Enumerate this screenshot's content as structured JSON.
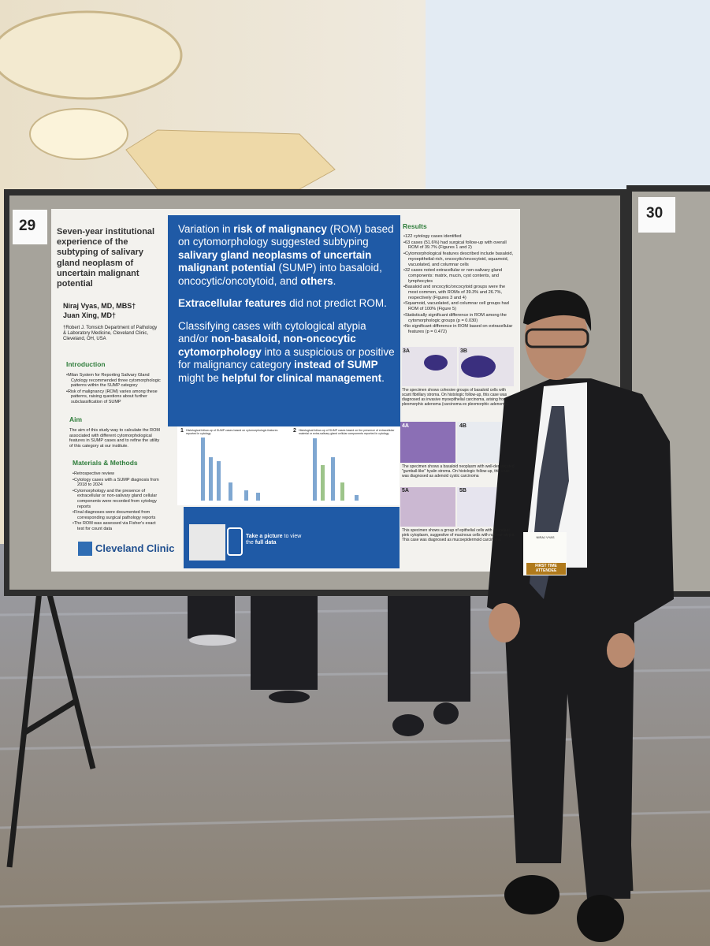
{
  "board_numbers": [
    "29",
    "30"
  ],
  "poster": {
    "title": "Seven-year institutional experience of the subtyping of salivary gland neoplasm of uncertain malignant potential",
    "authors": [
      "Niraj Vyas, MD, MBS†",
      "Juan Xing, MD†"
    ],
    "affiliation": "†Robert J. Tomsich Department of Pathology & Laboratory Medicine, Cleveland Clinic, Cleveland, OH, USA",
    "introduction": {
      "heading": "Introduction",
      "bullets": [
        "Milan System for Reporting Salivary Gland Cytology recommended three cytomorphologic patterns within the SUMP category",
        "Risk of malignancy (ROM) varies among these patterns, raising questions about further subclassification of SUMP"
      ]
    },
    "aim": {
      "heading": "Aim",
      "text": "The aim of this study way to calculate the ROM associated with different cytomorphological features in SUMP cases and to refine the utility of this category at our institute."
    },
    "methods": {
      "heading": "Materials & Methods",
      "bullets": [
        "Retrospective review",
        "Cytology cases with a SUMP diagnosis from 2018 to 2024",
        "Cytomorphology and the presence of extracellular or non-salivary gland cellular components were recorded from cytology reports",
        "Final diagnoses were documented from corresponding surgical pathology reports",
        "The ROM was assessed via Fisher's exact test for count data"
      ]
    },
    "key_message": [
      [
        {
          "text": "Variation in "
        },
        {
          "text": "risk of malignancy",
          "bold": true
        },
        {
          "text": " (ROM) based on cytomorphology suggested subtyping "
        },
        {
          "text": "salivary gland neoplasms of uncertain malignant potential",
          "bold": true
        },
        {
          "text": " (SUMP) into basaloid, oncocytic/oncotytoid, and "
        },
        {
          "text": "others",
          "bold": true
        },
        {
          "text": "."
        }
      ],
      [
        {
          "text": "Extracellular features",
          "bold": true
        },
        {
          "text": " did not predict ROM."
        }
      ],
      [
        {
          "text": "Classifying cases with cytological atypia and/or "
        },
        {
          "text": "non-basaloid, non-oncocytic cytomorphology",
          "bold": true
        },
        {
          "text": " into a suspicious or positive for malignancy category "
        },
        {
          "text": "instead of SUMP",
          "bold": true
        },
        {
          "text": " might be "
        },
        {
          "text": "helpful for clinical management",
          "bold": true
        },
        {
          "text": "."
        }
      ]
    ],
    "results": {
      "heading": "Results",
      "bullets": [
        "122 cytology cases identified",
        "63 cases (51.6%) had surgical follow-up with overall ROM of 39.7% (Figures 1 and 2)",
        "Cytomorphological features described include basaloid, myoepithelial-rich, oncocytic/oncocytoid, squamoid, vacuolated, and columnar cells",
        "32 cases noted extracellular or non-salivary gland components: matrix, mucin, cyst contents, and lymphocytes",
        "Basaloid and oncocytic/oncocytoid groups were the most common, with ROMs of 39.3% and 26.7%, respectively (Figures 3 and 4)",
        "Squamoid, vacuolated, and columnar cell groups had ROM of 100% (Figure 5)",
        "Statistically significant difference in ROM among the cytomorphologic groups (p = 0.030)",
        "No significant difference in ROM based on extracellular features (p = 0.472)"
      ]
    },
    "figure_labels": [
      "3A",
      "3B",
      "4A",
      "4B",
      "5A",
      "5B"
    ],
    "figure_captions": [
      "The specimen shows cohesive groups of basaloid cells with scant fibrillary stroma. On histologic follow-up, this case was diagnosed as invasive myoepithelial carcinoma, arising from pleomorphic adenoma (carcinoma ex pleomorphic adenoma)",
      "The specimen shows a basaloid neoplasm with well-demarcated \"gumball-like\" hyalin stroma. On histologic follow-up, this case was diagnosed as adenoid cystic carcinoma",
      "This specimen shows a group of epithelial cells with abundant pink cytoplasm, suggestive of mucinous cells with nuclear atypia. This case was diagnosed as mucoepidermoid carcinoma"
    ],
    "chart_numbers": [
      "1",
      "2"
    ],
    "chart_titles": [
      "Histological follow-up of SUMP cases based on cytomorphologic features reported in cytology",
      "Histological follow-up of SUMP cases based on the presence of extracellular material or extra-salivary gland cellular components reported in cytology"
    ],
    "logo": "Cleveland Clinic",
    "qr_text": [
      {
        "text": "Take a picture",
        "bold": true
      },
      {
        "text": " to view the "
      },
      {
        "text": "full data",
        "bold": true
      }
    ]
  },
  "badge": {
    "name": "NIRAJ VYAS",
    "label": "FIRST TIME ATTENDEE"
  }
}
